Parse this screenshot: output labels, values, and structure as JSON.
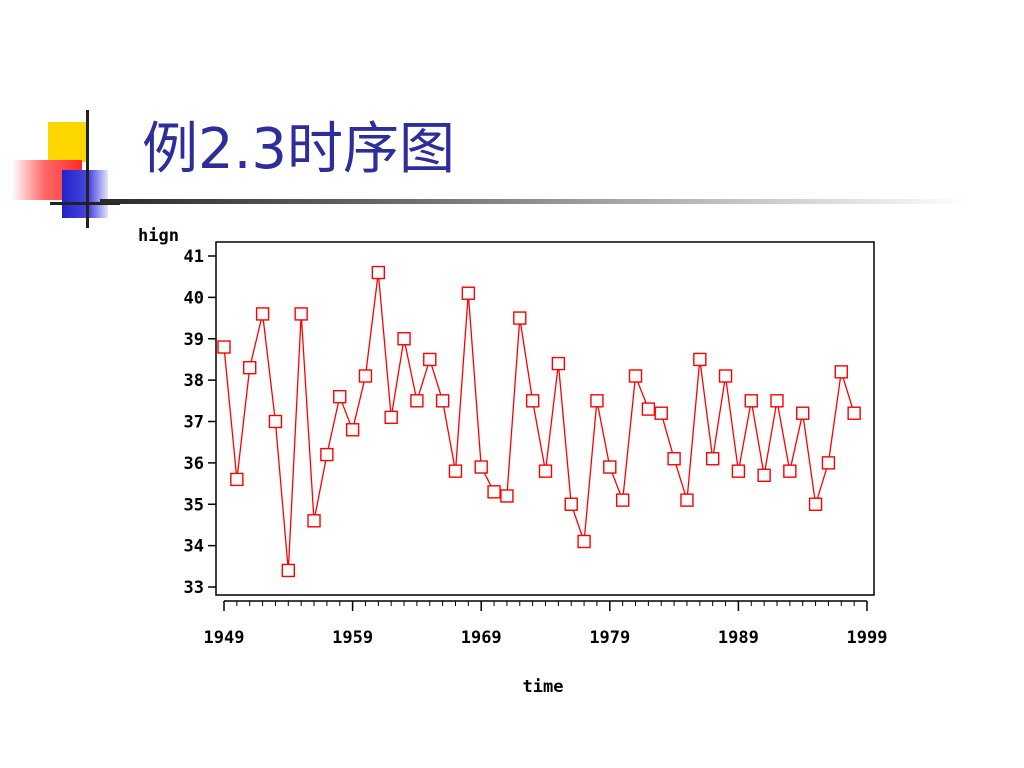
{
  "slide": {
    "title": "例2.3时序图"
  },
  "colors": {
    "title": "#2d2d9b",
    "series": "#ff0000",
    "axis": "#000000"
  },
  "chart_data": {
    "type": "line",
    "marker": "square",
    "title": "",
    "xlabel": "time",
    "ylabel": "hign",
    "xlim": [
      1949,
      1999
    ],
    "ylim": [
      33,
      41
    ],
    "x_ticks": [
      1949,
      1959,
      1969,
      1979,
      1989,
      1999
    ],
    "y_ticks": [
      33,
      34,
      35,
      36,
      37,
      38,
      39,
      40,
      41
    ],
    "grid": false,
    "legend": "none",
    "series": [
      {
        "x": [
          1949,
          1950,
          1951,
          1952,
          1953,
          1954,
          1955,
          1956,
          1957,
          1958,
          1959,
          1960,
          1961,
          1962,
          1963,
          1964,
          1965,
          1966,
          1967,
          1968,
          1969,
          1970,
          1971,
          1972,
          1973,
          1974,
          1975,
          1976,
          1977,
          1978,
          1979,
          1980,
          1981,
          1982,
          1983,
          1984,
          1985,
          1986,
          1987,
          1988,
          1989,
          1990,
          1991,
          1992,
          1993,
          1994,
          1995,
          1996,
          1997,
          1998
        ],
        "values": [
          38.8,
          35.6,
          38.3,
          39.6,
          37.0,
          33.4,
          39.6,
          34.6,
          36.2,
          37.6,
          36.8,
          38.1,
          40.6,
          37.1,
          39.0,
          37.5,
          38.5,
          37.5,
          35.8,
          40.1,
          35.9,
          35.3,
          35.2,
          39.5,
          37.5,
          35.8,
          38.4,
          35.0,
          34.1,
          37.5,
          35.9,
          35.1,
          38.1,
          37.3,
          37.2,
          36.1,
          35.1,
          38.5,
          36.1,
          38.1,
          35.8,
          37.5,
          35.7,
          37.5,
          35.8,
          37.2,
          35.0,
          36.0,
          38.2,
          37.2
        ]
      }
    ]
  }
}
